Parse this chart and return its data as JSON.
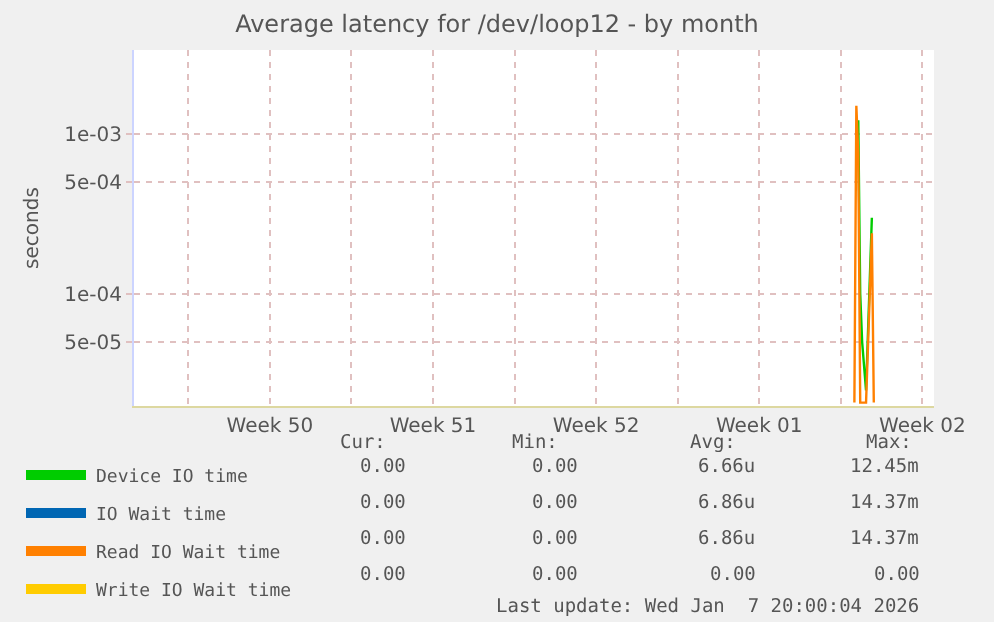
{
  "chart_data": {
    "type": "line",
    "title": "Average latency for /dev/loop12 - by month",
    "ylabel": "seconds",
    "log": "y",
    "grid": true,
    "legend": "bottom left",
    "marker": "none",
    "line_style": "solid",
    "xlim": [
      "2025-12-05T16:00",
      "2026-01-09T00:00"
    ],
    "xticks": [
      {
        "value": "2025-12-08",
        "label": null
      },
      {
        "value": "2025-12-11T12:00",
        "label": "Week 50"
      },
      {
        "value": "2025-12-15",
        "label": null
      },
      {
        "value": "2025-12-18T12:00",
        "label": "Week 51"
      },
      {
        "value": "2025-12-22",
        "label": null
      },
      {
        "value": "2025-12-25T12:00",
        "label": "Week 52"
      },
      {
        "value": "2025-12-29",
        "label": null
      },
      {
        "value": "2026-01-01T12:00",
        "label": "Week 01"
      },
      {
        "value": "2026-01-05",
        "label": null
      },
      {
        "value": "2026-01-08T12:00",
        "label": "Week 02"
      }
    ],
    "ylim": [
      2e-05,
      0.00335
    ],
    "yticks": [
      {
        "value": 5e-05,
        "label": "5e-05"
      },
      {
        "value": 0.0001,
        "label": "1e-04"
      },
      {
        "value": 0.0005,
        "label": "5e-04"
      },
      {
        "value": 0.001,
        "label": "1e-03"
      }
    ],
    "x": [
      "2026-01-05T14:00",
      "2026-01-05T16:00",
      "2026-01-05T18:00",
      "2026-01-05T20:00",
      "2026-01-05T22:00",
      "2026-01-06T02:00",
      "2026-01-06T08:00",
      "2026-01-06T10:00"
    ],
    "series": [
      {
        "name": "Device IO time",
        "color": "#00cc00",
        "values": [
          null,
          0.0012,
          0.0012,
          0.0001,
          5e-05,
          2.5e-05,
          0.0003,
          null
        ]
      },
      {
        "name": "IO Wait time",
        "color": "#0066b3",
        "values": [
          null,
          null,
          null,
          null,
          null,
          null,
          null,
          null
        ]
      },
      {
        "name": "Read IO Wait time",
        "color": "#ff8000",
        "values": [
          2.1e-05,
          0.0015,
          0.00075,
          2.1e-05,
          2.1e-05,
          2.1e-05,
          0.00024,
          2.1e-05
        ]
      },
      {
        "name": "Write IO Wait time",
        "color": "#ffcc00",
        "values": [
          null,
          null,
          null,
          null,
          null,
          null,
          null,
          null
        ]
      }
    ],
    "annotations": [
      "Cur:",
      "Min:",
      "Avg:",
      "Max:",
      "0.00",
      "0.00",
      "6.66u",
      "12.45m",
      "0.00",
      "0.00",
      "6.86u",
      "14.37m",
      "0.00",
      "0.00",
      "6.86u",
      "14.37m",
      "0.00",
      "0.00",
      "0.00",
      "0.00",
      "Last update: Wed Jan  7 20:00:04 2026"
    ]
  }
}
